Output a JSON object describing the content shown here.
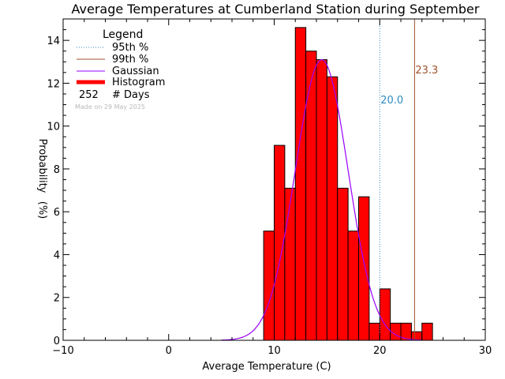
{
  "chart_data": {
    "type": "bar",
    "title": "Average Temperatures at Cumberland Station during September",
    "xlabel": "Average Temperature (C)",
    "ylabel": "Probability",
    "ylabel_unit": "(%)",
    "xlim": [
      -10,
      30
    ],
    "ylim": [
      0,
      15
    ],
    "xticks": [
      -10,
      0,
      10,
      20,
      30
    ],
    "yticks": [
      0,
      2,
      4,
      6,
      8,
      10,
      12,
      14
    ],
    "bin_width": 1,
    "histogram": {
      "bin_left_edges": [
        9,
        10,
        11,
        12,
        13,
        14,
        15,
        16,
        17,
        18,
        19,
        20,
        21,
        22,
        23,
        24
      ],
      "values": [
        5.1,
        9.1,
        7.1,
        14.6,
        13.5,
        13.1,
        12.3,
        7.1,
        5.1,
        6.7,
        0.8,
        2.4,
        0.8,
        0.8,
        0.4,
        0.8
      ],
      "color": "#ff0000"
    },
    "gaussian": {
      "mean": 14.5,
      "sigma": 2.5,
      "peak": 13.1,
      "x_range": [
        5,
        24
      ],
      "color": "#9900ff"
    },
    "percentile_lines": [
      {
        "x": 20.0,
        "label": "20.0",
        "color": "#2e8bc0",
        "style": "dotted"
      },
      {
        "x": 23.3,
        "label": "23.3",
        "color": "#a0522d",
        "style": "solid"
      }
    ],
    "legend": {
      "title": "Legend",
      "placement": "top-left",
      "entries": [
        {
          "label": "95th %",
          "color": "#2e8bc0",
          "style": "dotted"
        },
        {
          "label": "99th %",
          "color": "#a0522d",
          "style": "solid"
        },
        {
          "label": "Gaussian",
          "color": "#9900ff",
          "style": "solid"
        },
        {
          "label": "Histogram",
          "color": "#ff0000",
          "style": "thick"
        }
      ],
      "days_count": "252",
      "days_label": "# Days"
    },
    "footnote": "Made on 29 May 2025"
  }
}
